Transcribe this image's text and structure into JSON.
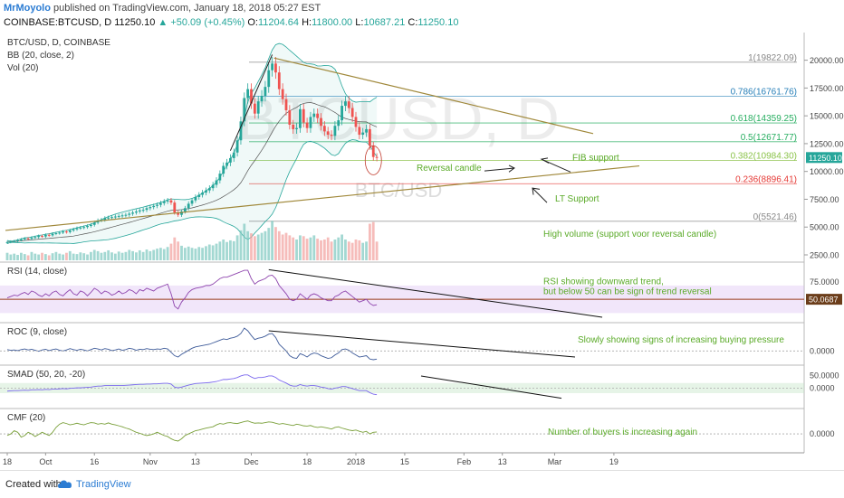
{
  "header": {
    "author": "MrMoyolo",
    "published": "published on TradingView.com, January 18, 2018 05:27 EST",
    "symbol": "COINBASE:BTCUSD, D",
    "last": "11250.10",
    "change": "▲ +50.09 (+0.45%)",
    "o_label": "O:",
    "o": "11204.64",
    "h_label": "H:",
    "h": "11800.00",
    "l_label": "L:",
    "l": "10687.21",
    "c_label": "C:",
    "c": "11250.10"
  },
  "footer": {
    "created_with": "Created with",
    "brand": "TradingView"
  },
  "colors": {
    "up": "#26a69a",
    "down": "#ef5350",
    "bb": "#26a69a",
    "rsi": "#8e44ad",
    "roc": "#3d5a99",
    "smad": "#7b68ee",
    "cmf": "#7aa03a",
    "annotation": "#5aaa28",
    "fib_1": "#888888",
    "fib_0786": "#2980b9",
    "fib_0618": "#27ae60",
    "fib_05": "#27ae60",
    "fib_0382": "#8bc34a",
    "fib_0236": "#e53935",
    "fib_0": "#888888"
  },
  "chart_data": [
    {
      "type": "candlestick",
      "legend": [
        "BTC/USD, D, COINBASE",
        "BB (20, close, 2)",
        "Vol (20)"
      ],
      "watermark": "BTCUSD, D",
      "watermark_sub": "BTC/USD",
      "ylim": [
        2500,
        22000
      ],
      "y_ticks": [
        "20000.00",
        "17500.00",
        "15000.00",
        "12500.00",
        "10000.00",
        "7500.00",
        "5000.00",
        "2500.00"
      ],
      "last_price_label": "11250.10",
      "fib_levels": [
        {
          "label": "1(19822.09)",
          "value": 19822.09,
          "color_key": "fib_1"
        },
        {
          "label": "0.786(16761.76)",
          "value": 16761.76,
          "color_key": "fib_0786"
        },
        {
          "label": "0.618(14359.25)",
          "value": 14359.25,
          "color_key": "fib_0618"
        },
        {
          "label": "0.5(12671.77)",
          "value": 12671.77,
          "color_key": "fib_05"
        },
        {
          "label": "0.382(10984.30)",
          "value": 10984.3,
          "color_key": "fib_0382"
        },
        {
          "label": "0.236(8896.41)",
          "value": 8896.41,
          "color_key": "fib_0236"
        },
        {
          "label": "0(5521.46)",
          "value": 5521.46,
          "color_key": "fib_0"
        }
      ],
      "close": [
        3650,
        3700,
        3740,
        3820,
        3900,
        3980,
        3950,
        4050,
        4100,
        4200,
        4150,
        4300,
        4250,
        4400,
        4450,
        4500,
        4600,
        4550,
        4700,
        4800,
        4900,
        4950,
        5000,
        5100,
        5200,
        5400,
        5600,
        5650,
        5800,
        5850,
        5900,
        5950,
        6000,
        6050,
        6100,
        6200,
        6300,
        6400,
        6500,
        6550,
        6700,
        6800,
        6900,
        7000,
        7150,
        7300,
        7400,
        7200,
        6300,
        6100,
        6400,
        6700,
        7100,
        7400,
        7700,
        7900,
        8100,
        8300,
        8500,
        8800,
        9200,
        9800,
        10500,
        10800,
        11200,
        11700,
        12800,
        14500,
        16600,
        17400,
        16100,
        15200,
        16300,
        16800,
        17600,
        19100,
        19700,
        18900,
        17400,
        16500,
        15500,
        14200,
        13800,
        13900,
        15600,
        14400,
        13900,
        14900,
        15200,
        14800,
        14100,
        13600,
        13300,
        13200,
        14100,
        14600,
        15900,
        16300,
        15700,
        14900,
        14000,
        13300,
        13500,
        13800,
        12300,
        11300,
        11250
      ],
      "high_index": 76,
      "low_index": 49,
      "volume": [
        0.18,
        0.14,
        0.16,
        0.13,
        0.18,
        0.15,
        0.12,
        0.2,
        0.16,
        0.14,
        0.18,
        0.15,
        0.12,
        0.17,
        0.2,
        0.16,
        0.14,
        0.18,
        0.22,
        0.16,
        0.15,
        0.19,
        0.17,
        0.14,
        0.2,
        0.25,
        0.22,
        0.18,
        0.2,
        0.24,
        0.19,
        0.16,
        0.21,
        0.18,
        0.2,
        0.25,
        0.22,
        0.19,
        0.24,
        0.2,
        0.26,
        0.22,
        0.25,
        0.28,
        0.3,
        0.27,
        0.32,
        0.4,
        0.55,
        0.45,
        0.35,
        0.3,
        0.33,
        0.3,
        0.28,
        0.32,
        0.3,
        0.34,
        0.38,
        0.36,
        0.4,
        0.45,
        0.5,
        0.44,
        0.48,
        0.46,
        0.6,
        0.72,
        0.88,
        0.7,
        0.65,
        0.58,
        0.62,
        0.66,
        0.7,
        0.78,
        0.95,
        0.8,
        0.7,
        0.62,
        0.66,
        0.6,
        0.55,
        0.5,
        0.6,
        0.58,
        0.52,
        0.55,
        0.6,
        0.52,
        0.48,
        0.5,
        0.55,
        0.45,
        0.5,
        0.55,
        0.62,
        0.5,
        0.45,
        0.42,
        0.5,
        0.48,
        0.42,
        0.45,
        0.88,
        0.92,
        0.45
      ]
    },
    {
      "type": "line",
      "legend": "RSI (14, close)",
      "ylim": [
        20,
        100
      ],
      "y_ticks": [
        "75.0000"
      ],
      "last_label": "50.0687",
      "values": [
        52,
        54,
        56,
        55,
        58,
        60,
        57,
        62,
        60,
        56,
        54,
        58,
        55,
        60,
        62,
        57,
        55,
        60,
        64,
        58,
        56,
        62,
        60,
        55,
        60,
        66,
        63,
        58,
        62,
        60,
        56,
        58,
        62,
        58,
        60,
        64,
        62,
        58,
        64,
        62,
        66,
        64,
        62,
        66,
        68,
        70,
        72,
        58,
        40,
        36,
        46,
        52,
        60,
        64,
        66,
        67,
        68,
        70,
        70,
        72,
        76,
        80,
        82,
        82,
        84,
        86,
        88,
        90,
        92,
        92,
        80,
        72,
        76,
        78,
        80,
        84,
        85,
        80,
        70,
        64,
        58,
        50,
        48,
        50,
        58,
        54,
        50,
        56,
        58,
        56,
        52,
        50,
        48,
        48,
        54,
        56,
        60,
        62,
        58,
        54,
        50,
        46,
        48,
        50,
        44,
        41,
        42
      ]
    },
    {
      "type": "line",
      "legend": "ROC (9, close)",
      "y_ticks": [
        "0.0000"
      ],
      "values": [
        4,
        2,
        3,
        1,
        4,
        6,
        3,
        5,
        2,
        -1,
        3,
        5,
        1,
        4,
        6,
        2,
        0,
        3,
        7,
        4,
        2,
        5,
        3,
        0,
        4,
        8,
        6,
        3,
        7,
        5,
        1,
        3,
        6,
        2,
        4,
        8,
        6,
        2,
        5,
        4,
        7,
        5,
        4,
        6,
        5,
        8,
        6,
        -4,
        -14,
        -18,
        -10,
        -4,
        2,
        8,
        12,
        14,
        16,
        18,
        20,
        24,
        28,
        32,
        36,
        34,
        38,
        40,
        44,
        52,
        68,
        60,
        46,
        34,
        38,
        40,
        44,
        50,
        52,
        40,
        20,
        10,
        0,
        -14,
        -20,
        -22,
        -8,
        -12,
        -18,
        -10,
        -6,
        -8,
        -14,
        -18,
        -22,
        -20,
        -12,
        -6,
        4,
        6,
        2,
        -6,
        -12,
        -18,
        -16,
        -14,
        -24,
        -26,
        -24
      ]
    },
    {
      "type": "line",
      "legend": "SMAD (50, 20, -20)",
      "ylim": [
        -70,
        80
      ],
      "y_ticks": [
        "50.0000",
        "0.0000"
      ],
      "values": [
        -12,
        -11,
        -10,
        -10,
        -9,
        -8,
        -9,
        -7,
        -7,
        -6,
        -7,
        -5,
        -6,
        -4,
        -4,
        -3,
        -2,
        -3,
        -1,
        0,
        1,
        1,
        2,
        3,
        4,
        6,
        8,
        8,
        10,
        10,
        10,
        10,
        10,
        10,
        11,
        12,
        13,
        14,
        15,
        15,
        16,
        16,
        17,
        17,
        18,
        19,
        19,
        16,
        4,
        1,
        4,
        8,
        12,
        15,
        18,
        19,
        20,
        21,
        22,
        24,
        26,
        30,
        34,
        34,
        36,
        38,
        42,
        48,
        52,
        52,
        44,
        38,
        42,
        42,
        44,
        48,
        48,
        42,
        32,
        26,
        20,
        12,
        8,
        8,
        14,
        10,
        8,
        10,
        10,
        8,
        4,
        2,
        -2,
        -4,
        0,
        2,
        6,
        6,
        2,
        -2,
        -6,
        -10,
        -10,
        -10,
        -18,
        -24,
        -26
      ]
    },
    {
      "type": "line",
      "legend": "CMF (20)",
      "ylim": [
        -0.5,
        0.7
      ],
      "y_ticks": [
        "0.0000"
      ],
      "values": [
        -0.05,
        0.0,
        0.1,
        0.05,
        -0.1,
        -0.05,
        0.05,
        0.0,
        -0.08,
        -0.02,
        0.05,
        0.0,
        -0.05,
        0.05,
        0.2,
        0.3,
        0.35,
        0.32,
        0.28,
        0.3,
        0.33,
        0.3,
        0.28,
        0.32,
        0.35,
        0.34,
        0.3,
        0.32,
        0.3,
        0.34,
        0.3,
        0.28,
        0.25,
        0.22,
        0.18,
        0.15,
        0.1,
        0.05,
        0.02,
        -0.02,
        -0.05,
        -0.03,
        0.0,
        0.05,
        0.0,
        -0.05,
        -0.08,
        -0.15,
        -0.2,
        -0.22,
        -0.15,
        -0.05,
        0.0,
        0.05,
        0.1,
        0.12,
        0.15,
        0.18,
        0.2,
        0.22,
        0.28,
        0.32,
        0.3,
        0.34,
        0.35,
        0.33,
        0.32,
        0.35,
        0.38,
        0.4,
        0.36,
        0.33,
        0.34,
        0.33,
        0.35,
        0.37,
        0.36,
        0.33,
        0.3,
        0.32,
        0.3,
        0.28,
        0.26,
        0.3,
        0.28,
        0.25,
        0.24,
        0.26,
        0.22,
        0.2,
        0.22,
        0.2,
        0.18,
        0.15,
        0.2,
        0.22,
        0.18,
        0.15,
        0.12,
        0.1,
        0.12,
        0.08,
        0.05,
        0.08,
        0.0,
        0.05,
        0.06
      ]
    }
  ],
  "x_axis": {
    "ticks": [
      {
        "label": "18",
        "i": 0
      },
      {
        "label": "Oct",
        "i": 11
      },
      {
        "label": "16",
        "i": 25
      },
      {
        "label": "Nov",
        "i": 41
      },
      {
        "label": "13",
        "i": 54
      },
      {
        "label": "Dec",
        "i": 70
      },
      {
        "label": "18",
        "i": 86
      },
      {
        "label": "2018",
        "i": 100
      },
      {
        "label": "15",
        "i": 114
      },
      {
        "label": "Feb",
        "i": 131
      },
      {
        "label": "13",
        "i": 142
      },
      {
        "label": "Mar",
        "i": 157
      },
      {
        "label": "19",
        "i": 174
      }
    ]
  },
  "annotations": {
    "reversal_candle": "Reversal candle",
    "fib_support": "FIB support",
    "lt_support": "LT Support",
    "high_volume": "High volume (support voor reversal candle)",
    "rsi_note_1": "RSI showing downward trend,",
    "rsi_note_2": "but below 50 can be sign of trend reversal",
    "roc_note": "Slowly showing signs of increasing buying pressure",
    "cmf_note": "Number of buyers is increasing again"
  }
}
